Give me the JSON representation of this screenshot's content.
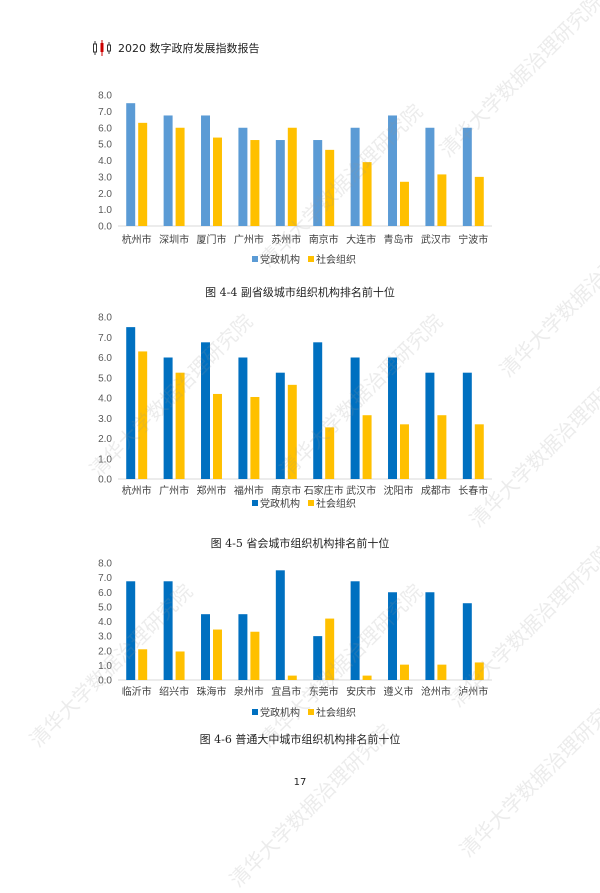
{
  "header": {
    "title": "2020 数字政府发展指数报告",
    "icon": "candlestick-logo-icon"
  },
  "watermark": "清华大学数据治理研究院",
  "page_number": "17",
  "chart_data": [
    {
      "type": "bar",
      "caption": "图 4-4 副省级城市组织机构排名前十位",
      "categories": [
        "杭州市",
        "深圳市",
        "厦门市",
        "广州市",
        "苏州市",
        "南京市",
        "大连市",
        "青岛市",
        "武汉市",
        "宁波市"
      ],
      "series": [
        {
          "name": "党政机构",
          "color": "#5b9bd5",
          "values": [
            7.5,
            6.75,
            6.75,
            6.0,
            5.25,
            5.25,
            6.0,
            6.75,
            6.0,
            6.0
          ]
        },
        {
          "name": "社会组织",
          "color": "#ffc000",
          "values": [
            6.3,
            6.0,
            5.4,
            5.25,
            6.0,
            4.65,
            3.9,
            2.7,
            3.15,
            3.0
          ]
        }
      ],
      "yticks": [
        "0.0",
        "1.0",
        "2.0",
        "3.0",
        "4.0",
        "5.0",
        "6.0",
        "7.0",
        "8.0"
      ],
      "ylim": [
        0,
        8
      ],
      "grid": false,
      "legend": "bottom"
    },
    {
      "type": "bar",
      "caption": "图 4-5  省会城市组织机构排名前十位",
      "categories": [
        "杭州市",
        "广州市",
        "郑州市",
        "福州市",
        "南京市",
        "石家庄市",
        "武汉市",
        "沈阳市",
        "成都市",
        "长春市"
      ],
      "series": [
        {
          "name": "党政机构",
          "color": "#0070c0",
          "values": [
            7.5,
            6.0,
            6.75,
            6.0,
            5.25,
            6.75,
            6.0,
            6.0,
            5.25,
            5.25
          ]
        },
        {
          "name": "社会组织",
          "color": "#ffc000",
          "values": [
            6.3,
            5.25,
            4.2,
            4.05,
            4.65,
            2.55,
            3.15,
            2.7,
            3.15,
            2.7
          ]
        }
      ],
      "yticks": [
        "0.0",
        "1.0",
        "2.0",
        "3.0",
        "4.0",
        "5.0",
        "6.0",
        "7.0",
        "8.0"
      ],
      "ylim": [
        0,
        8
      ],
      "grid": false,
      "legend": "bottom"
    },
    {
      "type": "bar",
      "caption": "图 4-6  普通大中城市组织机构排名前十位",
      "categories": [
        "临沂市",
        "绍兴市",
        "珠海市",
        "泉州市",
        "宜昌市",
        "东莞市",
        "安庆市",
        "遵义市",
        "沧州市",
        "泸州市"
      ],
      "series": [
        {
          "name": "党政机构",
          "color": "#0070c0",
          "values": [
            6.75,
            6.75,
            4.5,
            4.5,
            7.5,
            3.0,
            6.75,
            6.0,
            6.0,
            5.25
          ]
        },
        {
          "name": "社会组织",
          "color": "#ffc000",
          "values": [
            2.1,
            1.95,
            3.45,
            3.3,
            0.3,
            4.2,
            0.3,
            1.05,
            1.05,
            1.2
          ]
        }
      ],
      "yticks": [
        "0.0",
        "1.0",
        "2.0",
        "3.0",
        "4.0",
        "5.0",
        "6.0",
        "7.0",
        "8.0"
      ],
      "ylim": [
        0,
        8
      ],
      "grid": false,
      "legend": "bottom"
    }
  ]
}
